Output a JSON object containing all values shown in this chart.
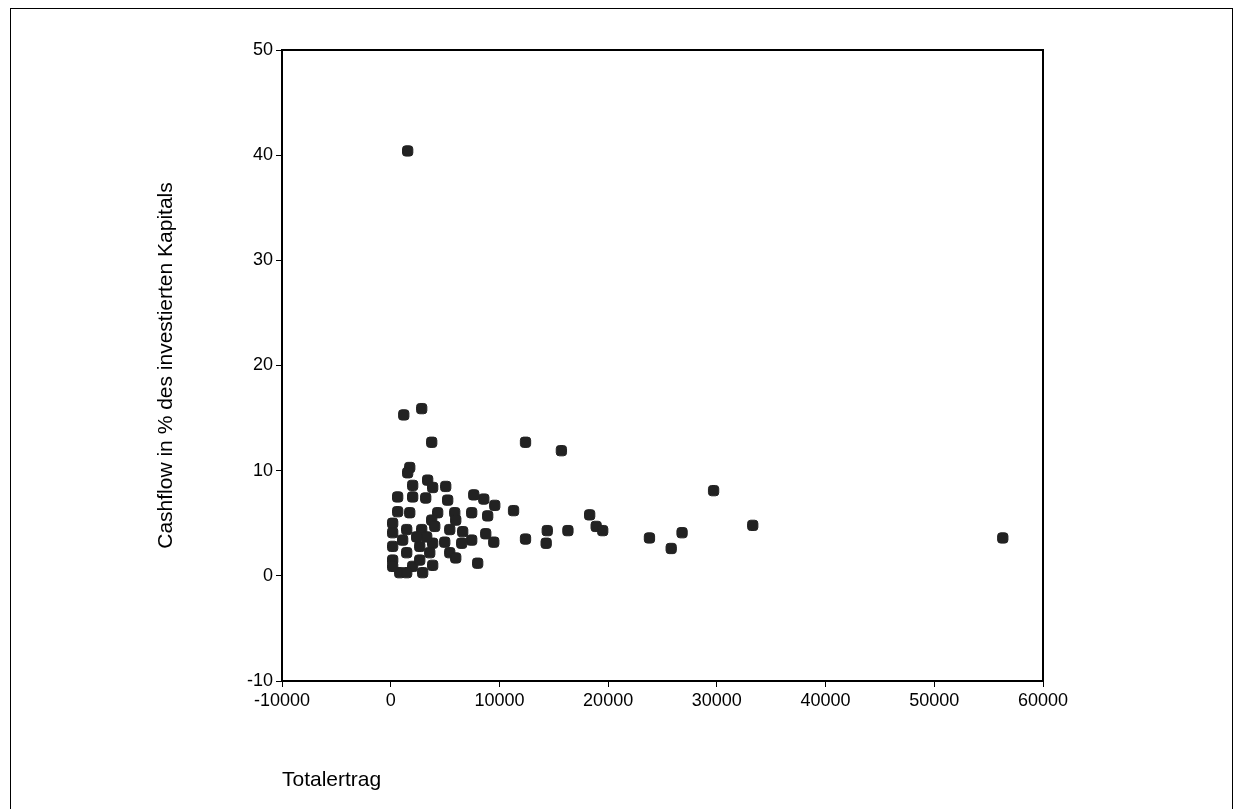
{
  "chart_data": {
    "type": "scatter",
    "xlabel": "Totalertrag",
    "ylabel": "Cashflow in % des investierten Kapitals",
    "xlim": [
      -10000,
      60000
    ],
    "xticks": [
      -10000,
      0,
      10000,
      20000,
      30000,
      40000,
      50000,
      60000
    ],
    "ylim": [
      -10,
      50
    ],
    "yticks": [
      -10,
      0,
      10,
      20,
      30,
      40,
      50
    ],
    "grid": false,
    "legend": false,
    "marker": "square",
    "series": [
      {
        "color": "#222222",
        "x": [
          1560,
          1200,
          2850,
          3770,
          12400,
          15700,
          29700,
          18300,
          18900,
          19500,
          23800,
          25800,
          26800,
          33300,
          56300,
          1750,
          1560,
          2020,
          3400,
          3860,
          5060,
          640,
          2020,
          3220,
          5240,
          7640,
          8560,
          9570,
          8920,
          11300,
          640,
          1750,
          4320,
          5890,
          7450,
          5980,
          3770,
          180,
          180,
          1470,
          2850,
          4050,
          5430,
          6620,
          7450,
          8740,
          9480,
          12400,
          14400,
          14300,
          16300,
          3860,
          4970,
          6530,
          5430,
          5980,
          8000,
          180,
          180,
          830,
          2020,
          2940,
          3860,
          1470,
          2670,
          1100,
          2390,
          180,
          1470,
          2670,
          3590,
          3310
        ],
        "values": [
          40.4,
          15.3,
          15.9,
          12.7,
          12.7,
          11.9,
          8.1,
          5.8,
          4.7,
          4.3,
          3.6,
          2.6,
          4.1,
          4.8,
          3.6,
          10.3,
          9.8,
          8.6,
          9.1,
          8.4,
          8.5,
          7.5,
          7.5,
          7.4,
          7.2,
          7.7,
          7.3,
          6.7,
          5.7,
          6.2,
          6.1,
          6.0,
          6.0,
          6.0,
          6.0,
          5.3,
          5.3,
          5.0,
          4.1,
          4.4,
          4.4,
          4.7,
          4.4,
          4.2,
          3.4,
          4.0,
          3.2,
          3.5,
          4.3,
          3.1,
          4.3,
          3.1,
          3.2,
          3.1,
          2.2,
          1.7,
          1.2,
          2.8,
          1.5,
          0.3,
          0.9,
          0.3,
          1.0,
          2.2,
          2.8,
          3.4,
          3.7,
          0.9,
          0.3,
          1.5,
          2.2,
          3.7
        ]
      }
    ]
  }
}
